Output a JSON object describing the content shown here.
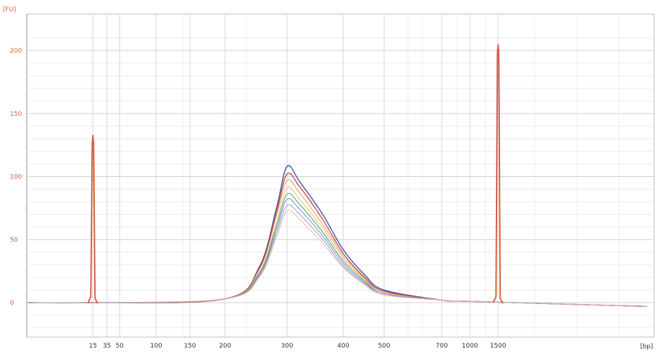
{
  "chart_data": {
    "type": "line",
    "y_unit_label": "[FU]",
    "x_unit_label": "[bp]",
    "ylim": [
      -25,
      215
    ],
    "y_ticks": [
      0,
      50,
      100,
      150,
      200
    ],
    "y_tick_labels": [
      "0",
      "50",
      "100",
      "150",
      "200"
    ],
    "x_ticks": [
      "15",
      "35",
      "50",
      "100",
      "150",
      "200",
      "300",
      "400",
      "500",
      "700",
      "1000",
      "1500"
    ],
    "x_tick_labels": [
      "15",
      "35",
      "50",
      "100",
      "150",
      "200",
      "300",
      "400",
      "500",
      "700",
      "1000",
      "1500"
    ],
    "grid": true,
    "marker_peaks": [
      {
        "x": "15",
        "y": 133
      },
      {
        "x": "1500",
        "y": 205
      }
    ],
    "series": [
      {
        "color": "#1f3fa8",
        "peak": 108,
        "points": [
          {
            "x": "200",
            "y": 3
          },
          {
            "x": "250",
            "y": 28
          },
          {
            "x": "280",
            "y": 75
          },
          {
            "x": "300",
            "y": 108
          },
          {
            "x": "320",
            "y": 96
          },
          {
            "x": "360",
            "y": 70
          },
          {
            "x": "400",
            "y": 42
          },
          {
            "x": "450",
            "y": 22
          },
          {
            "x": "500",
            "y": 10
          },
          {
            "x": "700",
            "y": 2
          }
        ]
      },
      {
        "color": "#c8332a",
        "peak": 102,
        "points": [
          {
            "x": "200",
            "y": 3
          },
          {
            "x": "250",
            "y": 27
          },
          {
            "x": "280",
            "y": 72
          },
          {
            "x": "300",
            "y": 102
          },
          {
            "x": "320",
            "y": 92
          },
          {
            "x": "360",
            "y": 66
          },
          {
            "x": "400",
            "y": 39
          },
          {
            "x": "450",
            "y": 20
          },
          {
            "x": "500",
            "y": 9
          },
          {
            "x": "700",
            "y": 2
          }
        ]
      },
      {
        "color": "#e49060",
        "peak": 97,
        "points": [
          {
            "x": "200",
            "y": 3
          },
          {
            "x": "250",
            "y": 26
          },
          {
            "x": "280",
            "y": 69
          },
          {
            "x": "300",
            "y": 97
          },
          {
            "x": "320",
            "y": 87
          },
          {
            "x": "360",
            "y": 62
          },
          {
            "x": "400",
            "y": 37
          },
          {
            "x": "450",
            "y": 19
          },
          {
            "x": "500",
            "y": 8
          },
          {
            "x": "700",
            "y": 2
          }
        ]
      },
      {
        "color": "#d8c46a",
        "peak": 91,
        "points": [
          {
            "x": "200",
            "y": 3
          },
          {
            "x": "250",
            "y": 24
          },
          {
            "x": "280",
            "y": 64
          },
          {
            "x": "300",
            "y": 91
          },
          {
            "x": "320",
            "y": 82
          },
          {
            "x": "360",
            "y": 59
          },
          {
            "x": "400",
            "y": 35
          },
          {
            "x": "450",
            "y": 18
          },
          {
            "x": "500",
            "y": 8
          },
          {
            "x": "700",
            "y": 2
          }
        ]
      },
      {
        "color": "#4e9a52",
        "peak": 86,
        "points": [
          {
            "x": "200",
            "y": 3
          },
          {
            "x": "250",
            "y": 23
          },
          {
            "x": "280",
            "y": 61
          },
          {
            "x": "300",
            "y": 86
          },
          {
            "x": "320",
            "y": 78
          },
          {
            "x": "360",
            "y": 56
          },
          {
            "x": "400",
            "y": 33
          },
          {
            "x": "450",
            "y": 17
          },
          {
            "x": "500",
            "y": 7
          },
          {
            "x": "700",
            "y": 2
          }
        ]
      },
      {
        "color": "#5b8fd0",
        "peak": 82,
        "points": [
          {
            "x": "200",
            "y": 3
          },
          {
            "x": "250",
            "y": 22
          },
          {
            "x": "280",
            "y": 58
          },
          {
            "x": "300",
            "y": 82
          },
          {
            "x": "320",
            "y": 74
          },
          {
            "x": "360",
            "y": 53
          },
          {
            "x": "400",
            "y": 31
          },
          {
            "x": "450",
            "y": 16
          },
          {
            "x": "500",
            "y": 7
          },
          {
            "x": "700",
            "y": 2
          }
        ]
      },
      {
        "color": "#a58ccf",
        "peak": 77,
        "points": [
          {
            "x": "200",
            "y": 3
          },
          {
            "x": "250",
            "y": 21
          },
          {
            "x": "280",
            "y": 55
          },
          {
            "x": "300",
            "y": 77
          },
          {
            "x": "320",
            "y": 70
          },
          {
            "x": "360",
            "y": 50
          },
          {
            "x": "400",
            "y": 29
          },
          {
            "x": "450",
            "y": 15
          },
          {
            "x": "500",
            "y": 7
          },
          {
            "x": "700",
            "y": 2
          }
        ]
      },
      {
        "color": "#e2b8a0",
        "peak": 73,
        "points": [
          {
            "x": "200",
            "y": 3
          },
          {
            "x": "250",
            "y": 20
          },
          {
            "x": "280",
            "y": 52
          },
          {
            "x": "300",
            "y": 73
          },
          {
            "x": "320",
            "y": 66
          },
          {
            "x": "360",
            "y": 47
          },
          {
            "x": "400",
            "y": 28
          },
          {
            "x": "450",
            "y": 14
          },
          {
            "x": "500",
            "y": 6
          },
          {
            "x": "700",
            "y": 2
          }
        ]
      }
    ]
  }
}
